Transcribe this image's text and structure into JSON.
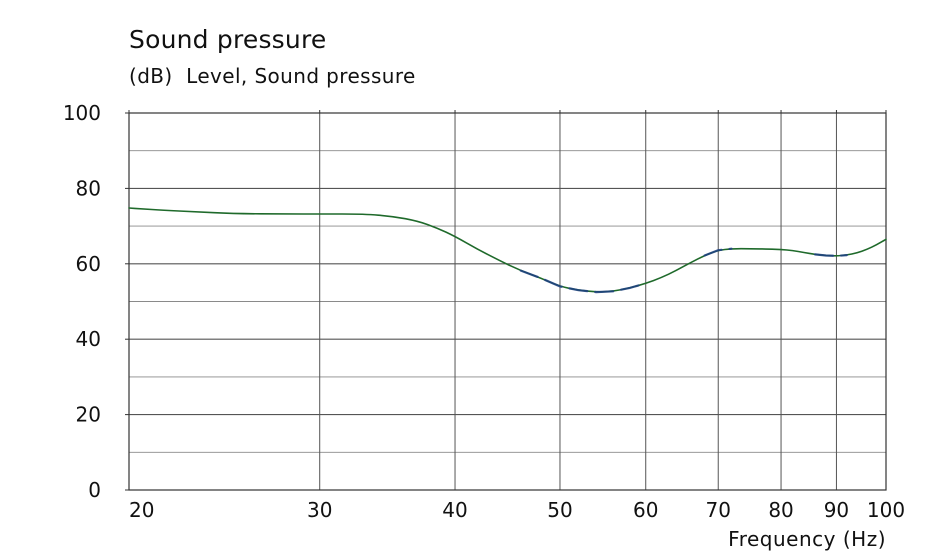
{
  "chart_data": {
    "type": "line",
    "title": "Sound pressure",
    "subtitle": "(dB)  Level, Sound pressure",
    "xlabel": "Frequency  (Hz)",
    "ylabel": "",
    "xscale": "log",
    "xlim": [
      20,
      100
    ],
    "ylim": [
      0,
      100
    ],
    "grid": true,
    "x_ticks": [
      20,
      30,
      40,
      50,
      60,
      70,
      80,
      90,
      100
    ],
    "y_ticks": [
      0,
      20,
      40,
      60,
      80,
      100
    ],
    "series": [
      {
        "name": "Level, Sound pressure",
        "x": [
          20,
          20.5,
          21.5,
          23,
          25,
          28,
          30,
          33,
          35,
          37,
          38.5,
          40,
          42,
          44,
          46,
          48,
          50,
          52,
          54,
          56,
          58,
          60,
          62,
          64,
          66,
          68,
          70,
          72,
          75,
          78,
          80,
          82,
          84,
          86,
          88,
          90,
          92,
          94,
          96,
          98,
          100
        ],
        "values": [
          74.8,
          74.6,
          74.2,
          73.8,
          73.3,
          73.2,
          73.2,
          73.2,
          72.6,
          71.3,
          69.5,
          67.3,
          63.8,
          60.8,
          58.2,
          56.2,
          54.0,
          53.0,
          52.5,
          52.7,
          53.6,
          54.8,
          56.3,
          58.2,
          60.3,
          62.2,
          63.6,
          64.0,
          64.0,
          63.9,
          63.8,
          63.5,
          63.0,
          62.5,
          62.2,
          62.1,
          62.3,
          62.9,
          63.8,
          65.0,
          66.5
        ]
      }
    ]
  }
}
